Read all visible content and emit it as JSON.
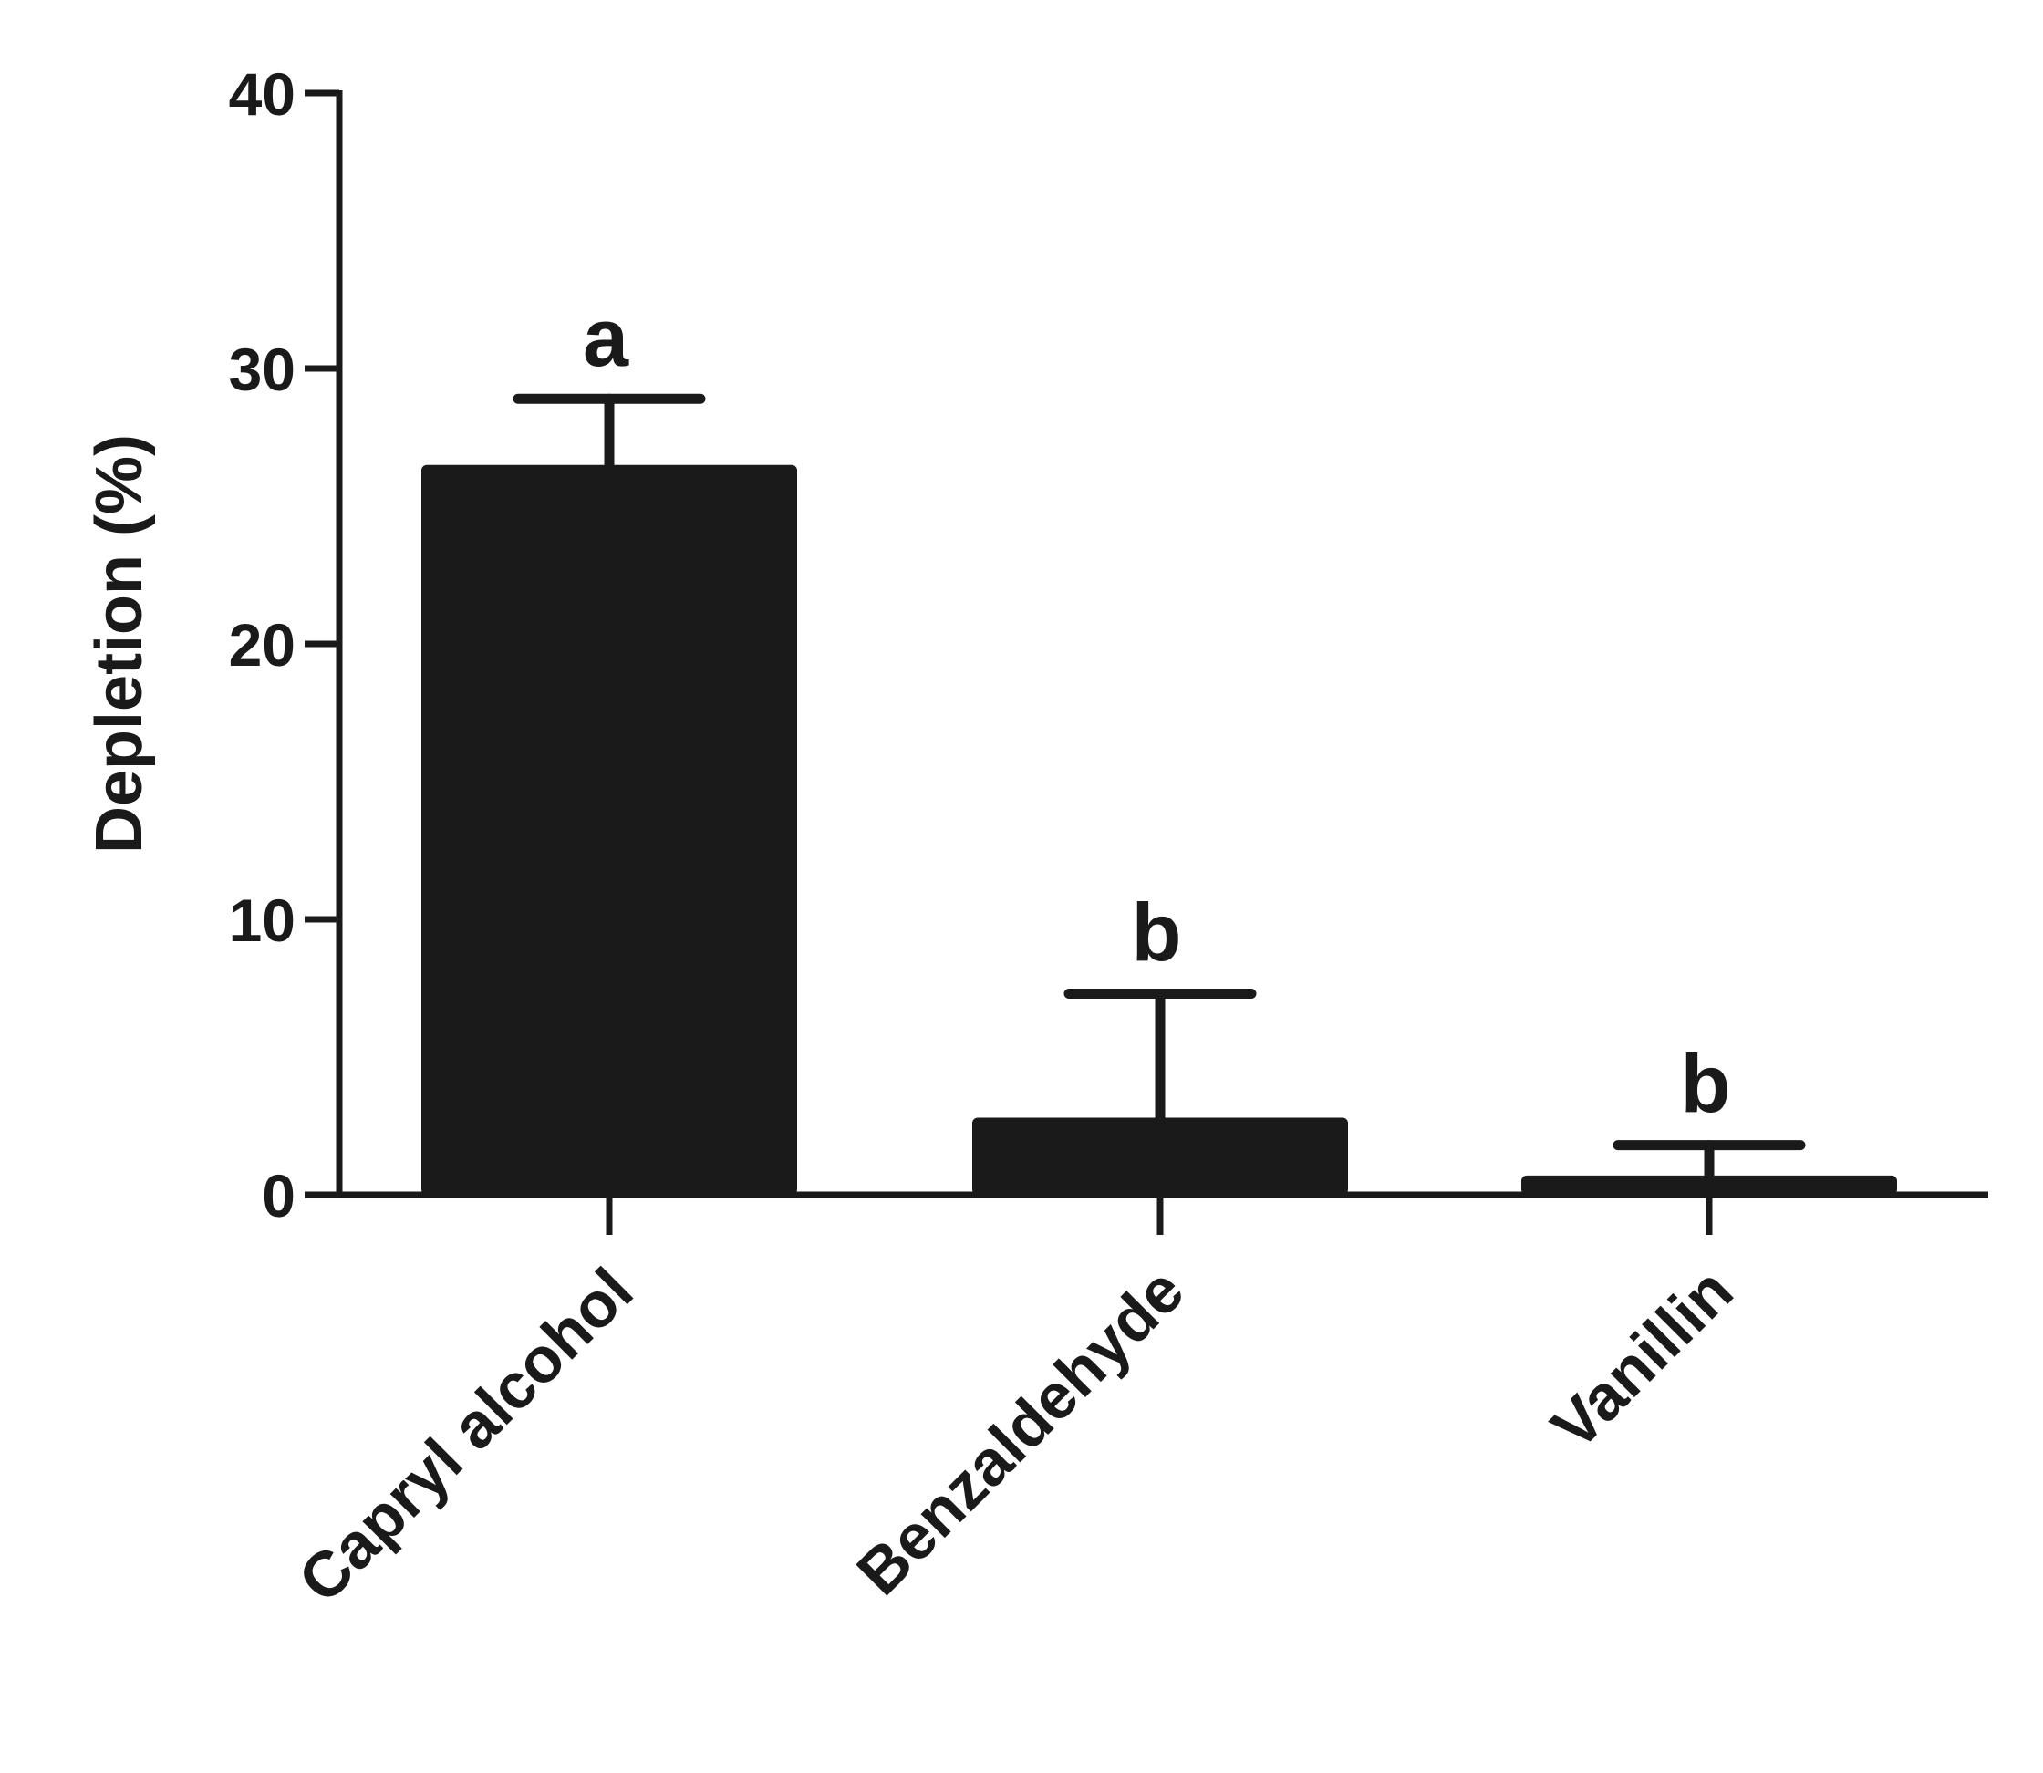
{
  "chart_data": {
    "type": "bar",
    "categories": [
      "Capryl alcohol",
      "Benzaldehyde",
      "Vanillin"
    ],
    "series": [
      {
        "values": [
          26.5,
          2.8,
          0.7
        ],
        "errors": [
          2.4,
          4.5,
          1.1
        ],
        "significance": [
          "a",
          "b",
          "b"
        ]
      }
    ],
    "title": "",
    "xlabel": "",
    "ylabel": "Depletion (%)",
    "ylim": [
      0,
      40
    ],
    "yticks": [
      0,
      10,
      20,
      30,
      40
    ],
    "grid": false,
    "legend": "none",
    "colors": {
      "bar": "#1a1a1a",
      "axis": "#1a1a1a",
      "background": "#ffffff"
    }
  }
}
